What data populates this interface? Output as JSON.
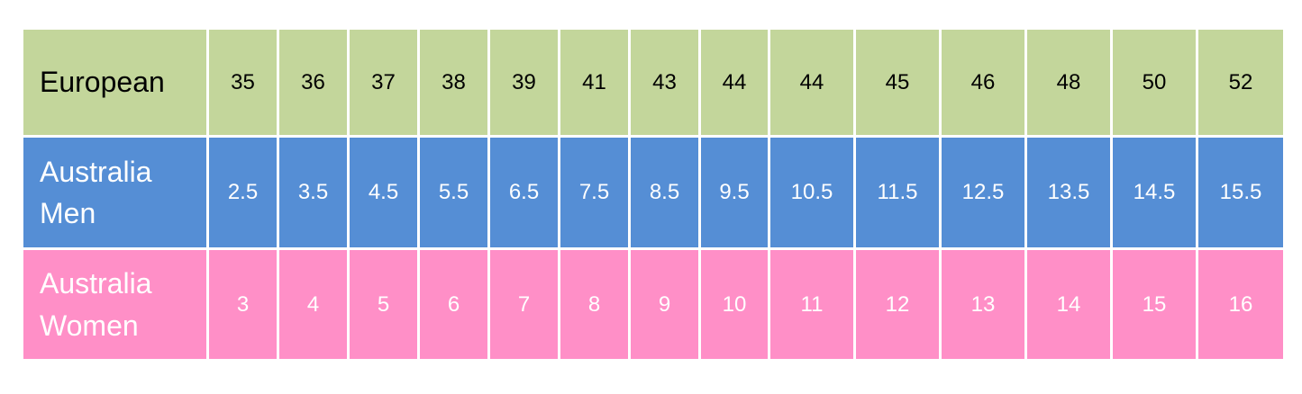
{
  "table": {
    "rows": [
      {
        "label": "European",
        "cells": [
          35,
          36,
          37,
          38,
          39,
          41,
          43,
          44,
          44,
          45,
          46,
          48,
          50,
          52
        ]
      },
      {
        "label": "Australia Men",
        "cells": [
          2.5,
          3.5,
          4.5,
          5.5,
          6.5,
          7.5,
          8.5,
          9.5,
          10.5,
          11.5,
          12.5,
          13.5,
          14.5,
          15.5
        ]
      },
      {
        "label": "Australia Women",
        "cells": [
          3,
          4,
          5,
          6,
          7,
          8,
          9,
          10,
          11,
          12,
          13,
          14,
          15,
          16
        ]
      }
    ]
  }
}
